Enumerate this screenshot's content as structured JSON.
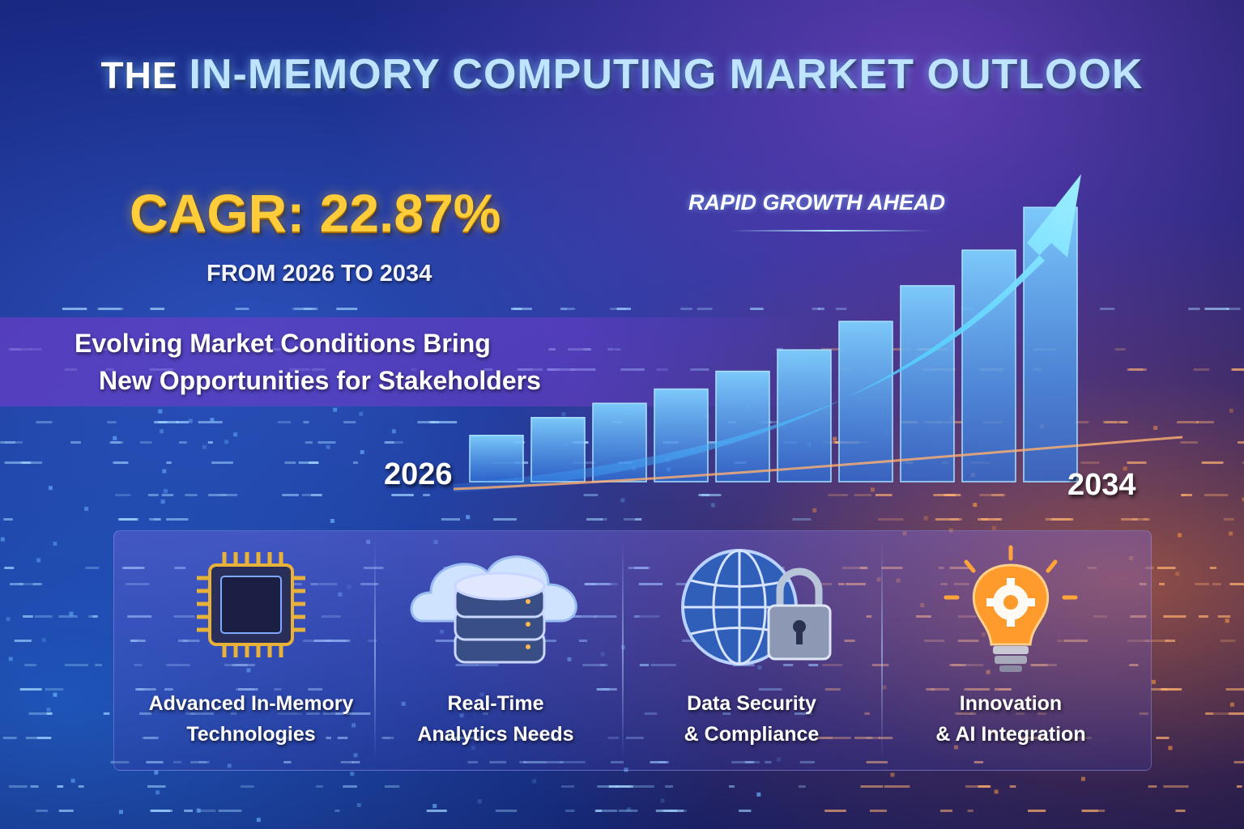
{
  "header": {
    "title_prefix": "THE",
    "title_main": "IN-MEMORY COMPUTING MARKET OUTLOOK"
  },
  "highlight": {
    "cagr": "CAGR: 22.87%",
    "period": "FROM 2026 TO 2034"
  },
  "tagline": {
    "line1": "Evolving Market Conditions Bring",
    "line2": "New Opportunities for Stakeholders"
  },
  "growth_chart": {
    "caption": "RAPID GROWTH AHEAD",
    "start_year": "2026",
    "end_year": "2034",
    "bar_levels": [
      0.13,
      0.18,
      0.22,
      0.26,
      0.31,
      0.37,
      0.45,
      0.55,
      0.65,
      0.77
    ]
  },
  "features": [
    {
      "icon": "chip-icon",
      "line1": "Advanced In-Memory",
      "line2": "Technologies"
    },
    {
      "icon": "cloud-database-icon",
      "line1": "Real-Time",
      "line2": "Analytics Needs"
    },
    {
      "icon": "globe-lock-icon",
      "line1": "Data Security",
      "line2": "& Compliance"
    },
    {
      "icon": "lightbulb-gear-icon",
      "line1": "Innovation",
      "line2": "& AI Integration"
    }
  ],
  "colors": {
    "accent_gold": "#ffcc3a",
    "bar_blue": "#6fb8ff",
    "arrow_cyan": "#5fe0ff",
    "warm_glow": "#ff8a2a"
  }
}
